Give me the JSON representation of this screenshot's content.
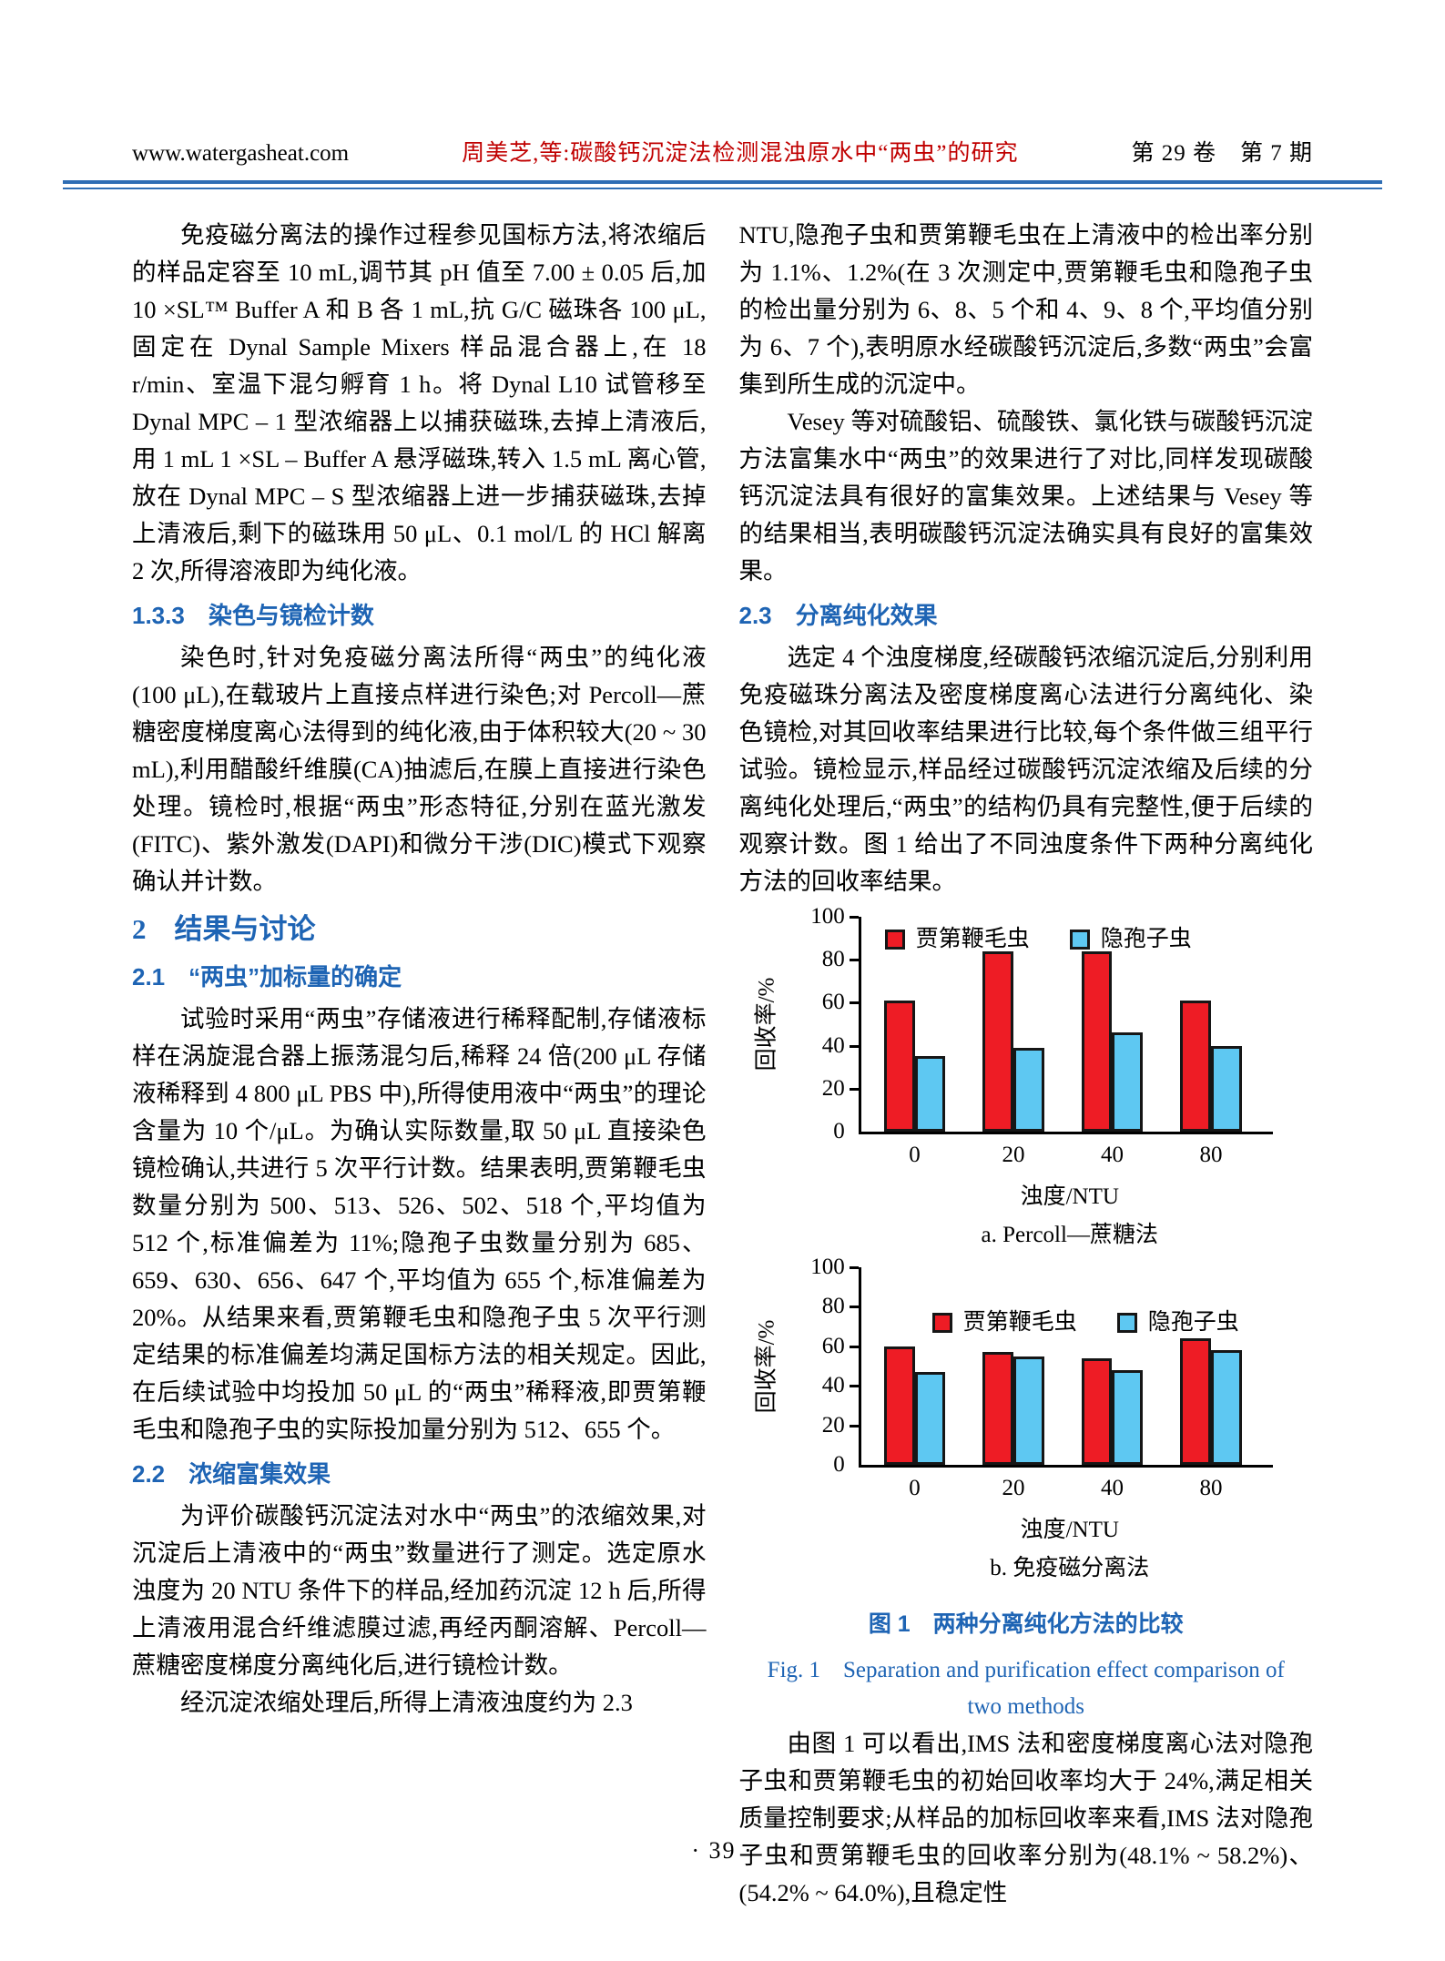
{
  "colors": {
    "accent": "#1e64b4",
    "title_red": "#c00000",
    "rule": "#2e6db4",
    "giardia_red": "#ee1c25",
    "crypto_blue": "#5ec8f2"
  },
  "header": {
    "site": "www.watergasheat.com",
    "title": "周美芝,等:碳酸钙沉淀法检测混浊原水中“两虫”的研究",
    "issue": "第 29 卷　第 7 期"
  },
  "left": {
    "p1": "免疫磁分离法的操作过程参见国标方法,将浓缩后的样品定容至 10 mL,调节其 pH 值至 7.00 ± 0.05 后,加 10 ×SL™ Buffer A 和 B 各 1 mL,抗 G/C 磁珠各 100 μL,固定在 Dynal Sample Mixers 样品混合器上,在 18 r/min、室温下混匀孵育 1 h。将 Dynal L10 试管移至 Dynal MPC – 1 型浓缩器上以捕获磁珠,去掉上清液后,用 1 mL 1 ×SL – Buffer A 悬浮磁珠,转入 1.5 mL 离心管,放在 Dynal MPC – S 型浓缩器上进一步捕获磁珠,去掉上清液后,剩下的磁珠用 50 μL、0.1 mol/L 的 HCl 解离 2 次,所得溶液即为纯化液。",
    "h133": "1.3.3　染色与镜检计数",
    "p2": "染色时,针对免疫磁分离法所得“两虫”的纯化液(100 μL),在载玻片上直接点样进行染色;对 Percoll—蔗糖密度梯度离心法得到的纯化液,由于体积较大(20 ~ 30 mL),利用醋酸纤维膜(CA)抽滤后,在膜上直接进行染色处理。镜检时,根据“两虫”形态特征,分别在蓝光激发(FITC)、紫外激发(DAPI)和微分干涉(DIC)模式下观察确认并计数。",
    "h2": "2　结果与讨论",
    "h21": "2.1　“两虫”加标量的确定",
    "p3": "试验时采用“两虫”存储液进行稀释配制,存储液标样在涡旋混合器上振荡混匀后,稀释 24 倍(200 μL 存储液稀释到 4 800 μL PBS 中),所得使用液中“两虫”的理论含量为 10 个/μL。为确认实际数量,取 50 μL 直接染色镜检确认,共进行 5 次平行计数。结果表明,贾第鞭毛虫数量分别为 500、513、526、502、518 个,平均值为 512 个,标准偏差为 11%;隐孢子虫数量分别为 685、659、630、656、647 个,平均值为 655 个,标准偏差为 20%。从结果来看,贾第鞭毛虫和隐孢子虫 5 次平行测定结果的标准偏差均满足国标方法的相关规定。因此,在后续试验中均投加 50 μL 的“两虫”稀释液,即贾第鞭毛虫和隐孢子虫的实际投加量分别为 512、655 个。",
    "h22": "2.2　浓缩富集效果",
    "p4": "为评价碳酸钙沉淀法对水中“两虫”的浓缩效果,对沉淀后上清液中的“两虫”数量进行了测定。选定原水浊度为 20 NTU 条件下的样品,经加药沉淀 12 h 后,所得上清液用混合纤维滤膜过滤,再经丙酮溶解、Percoll—蔗糖密度梯度分离纯化后,进行镜检计数。",
    "p5": "经沉淀浓缩处理后,所得上清液浊度约为 2.3"
  },
  "right": {
    "p1": "NTU,隐孢子虫和贾第鞭毛虫在上清液中的检出率分别为 1.1%、1.2%(在 3 次测定中,贾第鞭毛虫和隐孢子虫的检出量分别为 6、8、5 个和 4、9、8 个,平均值分别为 6、7 个),表明原水经碳酸钙沉淀后,多数“两虫”会富集到所生成的沉淀中。",
    "p2": "Vesey 等对硫酸铝、硫酸铁、氯化铁与碳酸钙沉淀方法富集水中“两虫”的效果进行了对比,同样发现碳酸钙沉淀法具有很好的富集效果。上述结果与 Vesey 等的结果相当,表明碳酸钙沉淀法确实具有良好的富集效果。",
    "h23": "2.3　分离纯化效果",
    "p3": "选定 4 个浊度梯度,经碳酸钙浓缩沉淀后,分别利用免疫磁珠分离法及密度梯度离心法进行分离纯化、染色镜检,对其回收率结果进行比较,每个条件做三组平行试验。镜检显示,样品经过碳酸钙沉淀浓缩及后续的分离纯化处理后,“两虫”的结构仍具有完整性,便于后续的观察计数。图 1 给出了不同浊度条件下两种分离纯化方法的回收率结果。",
    "p4": "由图 1 可以看出,IMS 法和密度梯度离心法对隐孢子虫和贾第鞭毛虫的初始回收率均大于 24%,满足相关质量控制要求;从样品的加标回收率来看,IMS 法对隐孢子虫和贾第鞭毛虫的回收率分别为(48.1% ~ 58.2%)、(54.2% ~ 64.0%),且稳定性"
  },
  "figure": {
    "caption_zh": "图 1　两种分离纯化方法的比较",
    "caption_en_line1": "Fig. 1　Separation and purification effect comparison of",
    "caption_en_line2": "two methods"
  },
  "chart_data": [
    {
      "type": "bar",
      "subtitle": "a. Percoll—蔗糖法",
      "categories": [
        "0",
        "20",
        "40",
        "80"
      ],
      "series": [
        {
          "name": "贾第鞭毛虫",
          "color": "#ee1c25",
          "values": [
            61,
            84,
            84,
            61
          ]
        },
        {
          "name": "隐孢子虫",
          "color": "#5ec8f2",
          "values": [
            35,
            39,
            46,
            40
          ]
        }
      ],
      "xlabel": "浊度/NTU",
      "ylabel": "回收率/%",
      "ylim": [
        0,
        100
      ],
      "yticks": [
        0,
        20,
        40,
        60,
        80,
        100
      ],
      "grid": false,
      "legend_position": "top-left-inside",
      "group_centers_pct": [
        13,
        37,
        61,
        85
      ],
      "bar_width_pct": 7.5
    },
    {
      "type": "bar",
      "subtitle": "b. 免疫磁分离法",
      "categories": [
        "0",
        "20",
        "40",
        "80"
      ],
      "series": [
        {
          "name": "贾第鞭毛虫",
          "color": "#ee1c25",
          "values": [
            60,
            57,
            54,
            64
          ]
        },
        {
          "name": "隐孢子虫",
          "color": "#5ec8f2",
          "values": [
            47,
            55,
            48,
            58
          ]
        }
      ],
      "xlabel": "浊度/NTU",
      "ylabel": "回收率/%",
      "ylim": [
        0,
        100
      ],
      "yticks": [
        0,
        20,
        40,
        60,
        80,
        100
      ],
      "grid": false,
      "legend_position": "upper-center-inside",
      "group_centers_pct": [
        13,
        37,
        61,
        85
      ],
      "bar_width_pct": 7.5
    }
  ],
  "footer": {
    "page_number": "· 39 ·"
  }
}
